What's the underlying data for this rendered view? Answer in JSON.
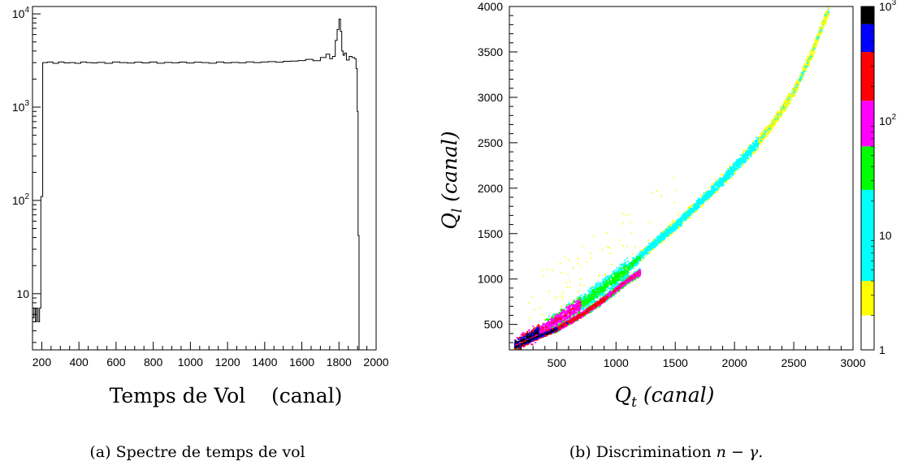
{
  "chart_data": [
    {
      "type": "histogram",
      "caption": "(a) Spectre de temps de vol",
      "xlabel": "Temps de Vol    (canal)",
      "ylabel": "",
      "xlim": [
        150,
        2000
      ],
      "ylim": [
        2.5,
        12000
      ],
      "yscale": "log",
      "xticks": [
        "200",
        "400",
        "600",
        "800",
        "1000",
        "1200",
        "1400",
        "1600",
        "1800",
        "2000"
      ],
      "yticks": [
        {
          "value": 10,
          "base": "10",
          "exp": ""
        },
        {
          "value": 100,
          "base": "10",
          "exp": "2"
        },
        {
          "value": 1000,
          "base": "10",
          "exp": "3"
        },
        {
          "value": 10000,
          "base": "10",
          "exp": "4"
        }
      ],
      "series": [
        {
          "x": [
            150,
            158,
            166,
            172,
            180,
            188,
            195,
            205,
            230,
            260,
            290,
            320,
            350,
            380,
            410,
            440,
            470,
            500,
            540,
            580,
            620,
            660,
            700,
            740,
            780,
            820,
            860,
            900,
            940,
            980,
            1020,
            1060,
            1100,
            1140,
            1180,
            1220,
            1260,
            1300,
            1340,
            1380,
            1420,
            1460,
            1500,
            1540,
            1580,
            1620,
            1660,
            1700,
            1730,
            1750,
            1765,
            1780,
            1790,
            1800,
            1808,
            1815,
            1822,
            1830,
            1840,
            1855,
            1870,
            1885,
            1892,
            1898,
            1903,
            1908,
            1915
          ],
          "y": [
            5.5,
            7,
            5,
            7,
            5,
            7,
            110,
            3000,
            3050,
            2950,
            3050,
            2980,
            3000,
            2950,
            3050,
            3000,
            2980,
            3020,
            2950,
            3050,
            3000,
            2970,
            3030,
            2980,
            3050,
            2960,
            3020,
            2990,
            3040,
            2970,
            3030,
            3000,
            2960,
            3050,
            2980,
            3020,
            2990,
            3060,
            3000,
            3050,
            3080,
            3030,
            3100,
            3120,
            3160,
            3250,
            3150,
            3400,
            3700,
            3300,
            3500,
            5200,
            6800,
            8800,
            6500,
            4000,
            3600,
            3800,
            3200,
            3500,
            3400,
            3300,
            2600,
            900,
            42,
            2.5,
            2.5
          ]
        }
      ]
    },
    {
      "type": "heatmap",
      "caption_prefix": "(b) Discrimination ",
      "caption_math": "n − γ.",
      "xlabel_main": "Q",
      "xlabel_sub": "t",
      "xlabel_rest": " (canal)",
      "ylabel_main": "Q",
      "ylabel_sub": "l",
      "ylabel_rest": " (canal)",
      "xlim": [
        100,
        3000
      ],
      "ylim": [
        220,
        4000
      ],
      "xticks": [
        "500",
        "1000",
        "1500",
        "2000",
        "2500",
        "3000"
      ],
      "yticks": [
        "500",
        "1000",
        "1500",
        "2000",
        "2500",
        "3000",
        "3500",
        "4000"
      ],
      "colorbar": {
        "scale": "log",
        "range": [
          1,
          1000
        ],
        "labels": [
          {
            "value": 1,
            "base": "1",
            "exp": ""
          },
          {
            "value": 10,
            "base": "10",
            "exp": ""
          },
          {
            "value": 100,
            "base": "10",
            "exp": "2"
          },
          {
            "value": 1000,
            "base": "10",
            "exp": "3"
          }
        ],
        "bands": [
          {
            "from": 1,
            "to": 2,
            "color": "#ffffff"
          },
          {
            "from": 2,
            "to": 4,
            "color": "#ffff00"
          },
          {
            "from": 4,
            "to": 25,
            "color": "#00ffff"
          },
          {
            "from": 25,
            "to": 60,
            "color": "#00ff00"
          },
          {
            "from": 60,
            "to": 150,
            "color": "#ff00ff"
          },
          {
            "from": 150,
            "to": 400,
            "color": "#ff0000"
          },
          {
            "from": 400,
            "to": 700,
            "color": "#0000ff"
          },
          {
            "from": 700,
            "to": 1000,
            "color": "#000000"
          }
        ]
      },
      "bands": [
        {
          "name": "gamma",
          "path": [
            [
              150,
              280
            ],
            [
              300,
              390
            ],
            [
              500,
              560
            ],
            [
              700,
              730
            ],
            [
              900,
              930
            ],
            [
              1100,
              1130
            ],
            [
              1300,
              1380
            ],
            [
              1500,
              1600
            ],
            [
              1700,
              1850
            ],
            [
              1900,
              2100
            ],
            [
              2100,
              2380
            ],
            [
              2300,
              2680
            ],
            [
              2500,
              3080
            ],
            [
              2650,
              3500
            ],
            [
              2780,
              3950
            ]
          ]
        },
        {
          "name": "neutron",
          "path": [
            [
              150,
              260
            ],
            [
              300,
              350
            ],
            [
              500,
              460
            ],
            [
              700,
              610
            ],
            [
              900,
              790
            ],
            [
              1100,
              1000
            ],
            [
              1200,
              1080
            ]
          ]
        }
      ]
    }
  ]
}
